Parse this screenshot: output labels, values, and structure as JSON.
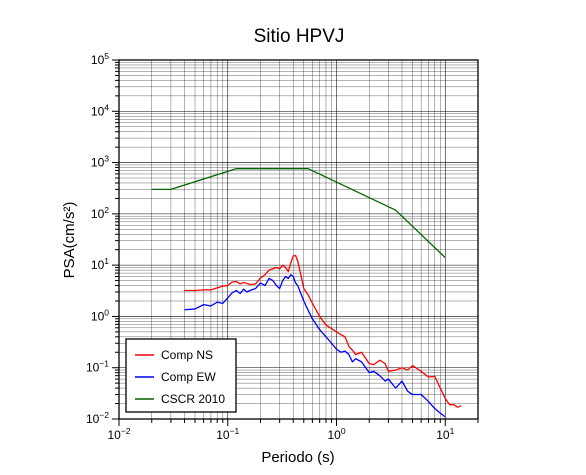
{
  "chart_data": {
    "type": "line",
    "title": "Sitio HPVJ",
    "xlabel": "Periodo (s)",
    "ylabel": "PSA(cm/s²)",
    "x_scale": "log",
    "y_scale": "log",
    "xlim": [
      0.01,
      20
    ],
    "ylim": [
      0.01,
      100000
    ],
    "grid": true,
    "legend_position": "bottom-left",
    "x_ticks": [
      {
        "value": 0.01,
        "base": "10",
        "exp": "−2"
      },
      {
        "value": 0.1,
        "base": "10",
        "exp": "−1"
      },
      {
        "value": 1,
        "base": "10",
        "exp": "0"
      },
      {
        "value": 10,
        "base": "10",
        "exp": "1"
      }
    ],
    "y_ticks": [
      {
        "value": 0.01,
        "base": "10",
        "exp": "−2"
      },
      {
        "value": 0.1,
        "base": "10",
        "exp": "−1"
      },
      {
        "value": 1,
        "base": "10",
        "exp": "0"
      },
      {
        "value": 10,
        "base": "10",
        "exp": "1"
      },
      {
        "value": 100,
        "base": "10",
        "exp": "2"
      },
      {
        "value": 1000,
        "base": "10",
        "exp": "3"
      },
      {
        "value": 10000,
        "base": "10",
        "exp": "4"
      },
      {
        "value": 100000,
        "base": "10",
        "exp": "5"
      }
    ],
    "series": [
      {
        "name": "Comp NS",
        "color": "#ff0000",
        "x": [
          0.04,
          0.05,
          0.06,
          0.07,
          0.08,
          0.09,
          0.1,
          0.11,
          0.12,
          0.13,
          0.14,
          0.15,
          0.16,
          0.18,
          0.2,
          0.22,
          0.24,
          0.26,
          0.28,
          0.3,
          0.32,
          0.34,
          0.36,
          0.38,
          0.4,
          0.42,
          0.44,
          0.47,
          0.5,
          0.55,
          0.6,
          0.7,
          0.8,
          0.9,
          1.0,
          1.1,
          1.2,
          1.3,
          1.4,
          1.5,
          1.7,
          2.0,
          2.2,
          2.5,
          2.8,
          3.0,
          3.5,
          4.0,
          4.5,
          5.0,
          6.0,
          7.0,
          8.0,
          9.0,
          10,
          11,
          12,
          13,
          14
        ],
        "y": [
          3.2,
          3.2,
          3.3,
          3.3,
          3.6,
          3.9,
          4.0,
          4.7,
          4.8,
          4.3,
          4.6,
          4.4,
          4.2,
          4.3,
          5.6,
          6.5,
          8.0,
          8.5,
          9.0,
          8.5,
          10,
          9.0,
          7.5,
          11,
          15,
          15.5,
          12,
          6.5,
          3.5,
          2.6,
          1.8,
          1.0,
          0.68,
          0.58,
          0.5,
          0.44,
          0.4,
          0.26,
          0.22,
          0.18,
          0.2,
          0.12,
          0.115,
          0.14,
          0.12,
          0.085,
          0.09,
          0.1,
          0.09,
          0.11,
          0.085,
          0.066,
          0.068,
          0.04,
          0.025,
          0.019,
          0.019,
          0.017,
          0.018
        ]
      },
      {
        "name": "Comp EW",
        "color": "#0000ff",
        "x": [
          0.04,
          0.05,
          0.06,
          0.07,
          0.08,
          0.09,
          0.1,
          0.11,
          0.12,
          0.13,
          0.14,
          0.15,
          0.16,
          0.18,
          0.2,
          0.22,
          0.24,
          0.26,
          0.28,
          0.3,
          0.32,
          0.34,
          0.36,
          0.38,
          0.4,
          0.42,
          0.44,
          0.47,
          0.5,
          0.55,
          0.6,
          0.7,
          0.8,
          0.9,
          1.0,
          1.1,
          1.2,
          1.3,
          1.4,
          1.5,
          1.7,
          2.0,
          2.2,
          2.5,
          2.8,
          3.0,
          3.5,
          4.0,
          4.5,
          5.0,
          6.0,
          7.0,
          8.0,
          9.0,
          10
        ],
        "y": [
          1.35,
          1.4,
          1.7,
          1.6,
          1.9,
          1.8,
          2.3,
          2.9,
          3.2,
          2.8,
          3.4,
          3.0,
          3.2,
          3.5,
          4.5,
          4.0,
          5.5,
          5.0,
          4.0,
          3.5,
          5.0,
          6.0,
          5.5,
          6.5,
          6.0,
          4.5,
          4.0,
          2.8,
          2.0,
          1.3,
          0.9,
          0.55,
          0.4,
          0.3,
          0.23,
          0.2,
          0.21,
          0.18,
          0.13,
          0.15,
          0.13,
          0.08,
          0.085,
          0.07,
          0.055,
          0.06,
          0.04,
          0.055,
          0.035,
          0.03,
          0.03,
          0.022,
          0.016,
          0.013,
          0.011
        ]
      },
      {
        "name": "CSCR 2010",
        "color": "#006400",
        "x": [
          0.02,
          0.03,
          0.12,
          0.55,
          3.5,
          10
        ],
        "y": [
          300,
          300,
          760,
          760,
          118,
          14
        ]
      }
    ]
  }
}
